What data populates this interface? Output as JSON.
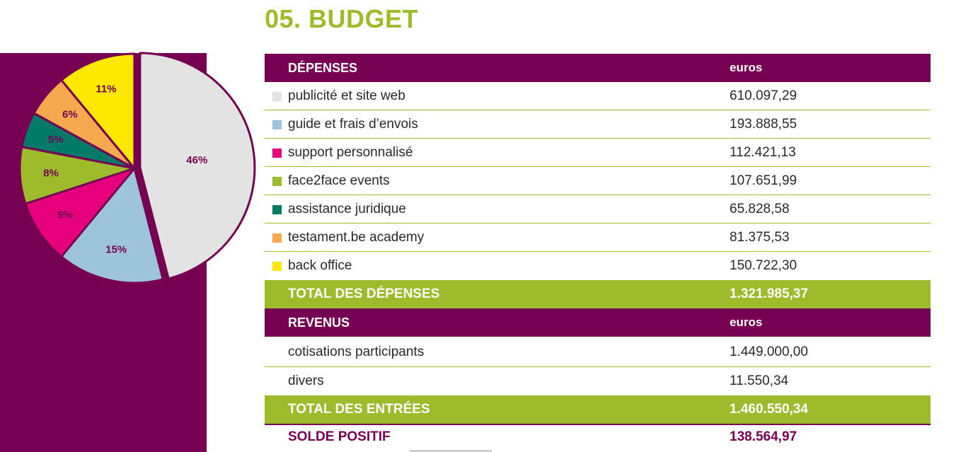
{
  "title": "05. BUDGET",
  "chart_data": {
    "type": "pie",
    "slices": [
      {
        "label": "46%",
        "value": 46,
        "color": "#e3e3e3"
      },
      {
        "label": "15%",
        "value": 15,
        "color": "#9ec4dc"
      },
      {
        "label": "9%",
        "value": 9,
        "color": "#e6007e"
      },
      {
        "label": "8%",
        "value": 8,
        "color": "#9ebb2c"
      },
      {
        "label": "5%",
        "value": 5,
        "color": "#007a68"
      },
      {
        "label": "6%",
        "value": 6,
        "color": "#f6a94e"
      },
      {
        "label": "11%",
        "value": 11,
        "color": "#ffe800"
      }
    ],
    "exploded_slice": "46%"
  },
  "expenses": {
    "header_label": "DÉPENSES",
    "header_unit": "euros",
    "items": [
      {
        "label": "publicité et site web",
        "value": "610.097,29",
        "color": "#e3e3e3"
      },
      {
        "label": "guide et frais d’envois",
        "value": "193.888,55",
        "color": "#9ec4dc"
      },
      {
        "label": "support personnalisé",
        "value": "112.421,13",
        "color": "#e6007e"
      },
      {
        "label": "face2face events",
        "value": "107.651,99",
        "color": "#9ebb2c"
      },
      {
        "label": "assistance juridique",
        "value": "65.828,58",
        "color": "#007a68"
      },
      {
        "label": "testament.be academy",
        "value": "81.375,53",
        "color": "#f6a94e"
      },
      {
        "label": "back office",
        "value": "150.722,30",
        "color": "#ffe800"
      }
    ],
    "total_label": "TOTAL DES DÉPENSES",
    "total_value": "1.321.985,37"
  },
  "revenues": {
    "header_label": "REVENUS",
    "header_unit": "euros",
    "items": [
      {
        "label": "cotisations participants",
        "value": "1.449.000,00"
      },
      {
        "label": "divers",
        "value": "11.550,34"
      }
    ],
    "total_label": "TOTAL DES ENTRÉES",
    "total_value": "1.460.550,34"
  },
  "balance": {
    "label": "SOLDE POSITIF",
    "value": "138.564,97"
  },
  "colors": {
    "brand_purple": "#760051",
    "brand_green": "#9ebb2c"
  }
}
